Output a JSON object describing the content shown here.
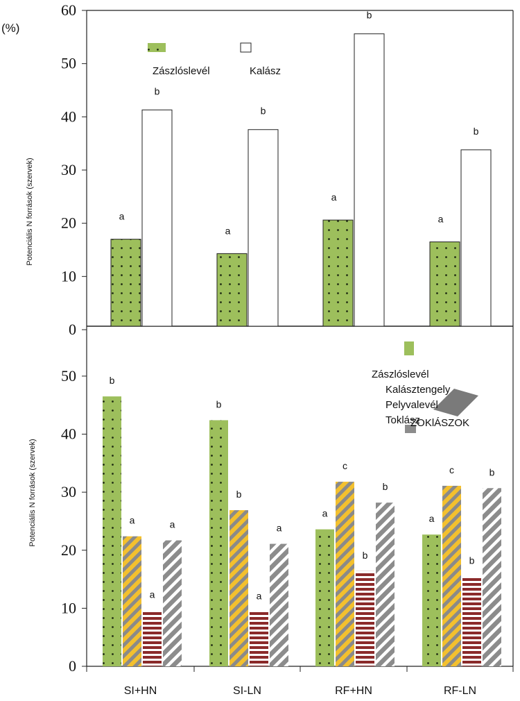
{
  "chart_data": [
    {
      "type": "bar",
      "ylabel": "Potenciális N források (szervek)",
      "unit_label": "(%)",
      "ylim": [
        0,
        60
      ],
      "yticks": [
        "60",
        "50",
        "40",
        "30",
        "20",
        "10",
        "0"
      ],
      "grid": false,
      "legend_position": "top-left",
      "categories": [
        "SI+HN",
        "SI-LN",
        "RF+HN",
        "RF-LN"
      ],
      "series": [
        {
          "name": "Zászlóslevél",
          "color": "#9dbf5c",
          "pattern": "dots",
          "values": [
            17,
            14.3,
            20.6,
            16.5
          ],
          "labels": [
            "a",
            "a",
            "a",
            "a"
          ]
        },
        {
          "name": "Kalász",
          "color": "#ffffff",
          "pattern": "none",
          "values": [
            41.3,
            37.6,
            55.6,
            33.8
          ],
          "labels": [
            "b",
            "b",
            "b",
            "b"
          ]
        }
      ]
    },
    {
      "type": "bar",
      "ylabel": "Potenciális N források (szervek)",
      "ylim": [
        0,
        55
      ],
      "yticks": [
        "50",
        "40",
        "30",
        "20",
        "10",
        "0"
      ],
      "grid": false,
      "legend_position": "top-right",
      "categories": [
        "SI+HN",
        "SI-LN",
        "RF+HN",
        "RF-LN"
      ],
      "series": [
        {
          "name": "Zászlóslevél",
          "color": "#9dbf5c",
          "pattern": "dots",
          "values": [
            46.5,
            42.4,
            23.6,
            22.7
          ],
          "labels": [
            "b",
            "b",
            "a",
            "a"
          ]
        },
        {
          "name": "Kalásztengely",
          "color": "#f3c02e",
          "pattern": "diagonal-gray",
          "values": [
            22.4,
            26.9,
            31.8,
            31.1
          ],
          "labels": [
            "a",
            "b",
            "c",
            "c"
          ]
        },
        {
          "name": "Pelyvalevél",
          "color": "#8b2a2a",
          "pattern": "horizontal-white",
          "values": [
            9.6,
            9.4,
            16.4,
            15.5
          ],
          "labels": [
            "a",
            "a",
            "b",
            "b"
          ]
        },
        {
          "name": "Toklász",
          "color": "#8c8c8c",
          "pattern": "diagonal-white",
          "values": [
            21.7,
            21.1,
            28.2,
            30.7
          ],
          "labels": [
            "a",
            "a",
            "b",
            "b"
          ]
        }
      ],
      "legend_overlap_text": "ZOKlÁSZOK"
    }
  ]
}
